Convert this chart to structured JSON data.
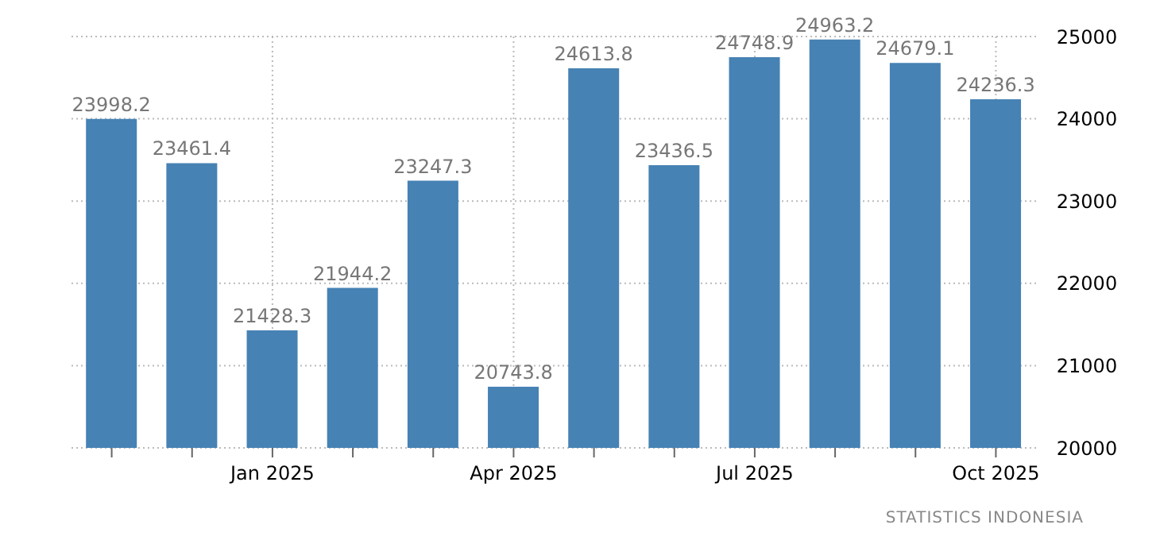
{
  "chart_data": {
    "type": "bar",
    "categories": [
      null,
      null,
      "Jan 2025",
      null,
      null,
      "Apr 2025",
      null,
      null,
      "Jul 2025",
      null,
      null,
      "Oct 2025"
    ],
    "values": [
      23998.2,
      23461.4,
      21428.3,
      21944.2,
      23247.3,
      20743.8,
      24613.8,
      23436.5,
      24748.9,
      24963.2,
      24679.1,
      24236.3
    ],
    "color": "#4682b4",
    "ylim": [
      20000,
      25000
    ],
    "yticks": [
      20000,
      21000,
      22000,
      23000,
      24000,
      25000
    ],
    "grid": true,
    "data_labels": true,
    "annotations": [
      "STATISTICS INDONESIA"
    ]
  }
}
